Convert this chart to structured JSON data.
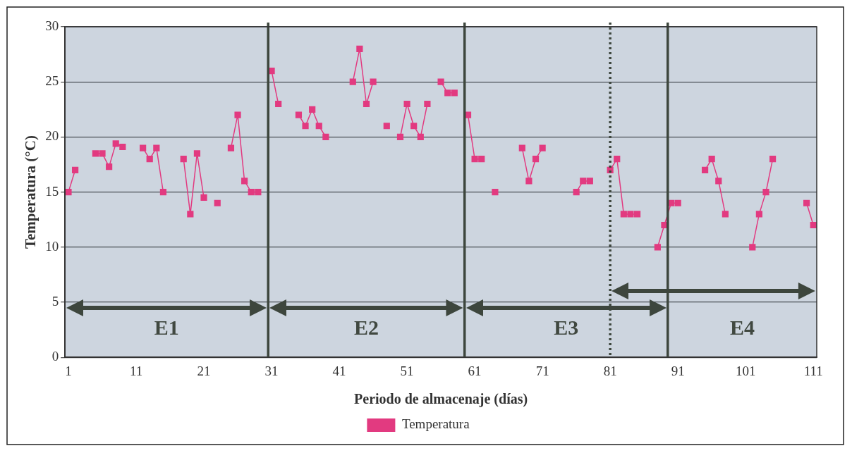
{
  "chart_data": {
    "type": "line",
    "xlabel": "Periodo de almacenaje (días)",
    "ylabel": "Temperatura (°C)",
    "x": [
      1,
      2,
      3,
      4,
      5,
      6,
      7,
      8,
      9,
      10,
      11,
      12,
      13,
      14,
      15,
      16,
      17,
      18,
      19,
      20,
      21,
      22,
      23,
      24,
      25,
      26,
      27,
      28,
      29,
      30,
      31,
      32,
      33,
      34,
      35,
      36,
      37,
      38,
      39,
      40,
      41,
      42,
      43,
      44,
      45,
      46,
      47,
      48,
      49,
      50,
      51,
      52,
      53,
      54,
      55,
      56,
      57,
      58,
      59,
      60,
      61,
      62,
      63,
      64,
      65,
      66,
      67,
      68,
      69,
      70,
      71,
      72,
      73,
      74,
      75,
      76,
      77,
      78,
      79,
      80,
      81,
      82,
      83,
      84,
      85,
      86,
      87,
      88,
      89,
      90,
      91,
      92,
      93,
      94,
      95,
      96,
      97,
      98,
      99,
      100,
      101,
      102,
      103,
      104,
      105,
      106,
      107,
      108,
      109,
      110,
      111
    ],
    "series": [
      {
        "name": "Temperatura",
        "color": "#e23a80",
        "values": [
          15,
          17,
          null,
          null,
          18.5,
          18.5,
          17.3,
          19.4,
          19.1,
          null,
          null,
          19,
          18,
          19,
          15,
          null,
          null,
          18,
          13,
          18.5,
          14.5,
          null,
          14,
          null,
          19,
          22,
          16,
          15,
          15,
          null,
          26,
          23,
          null,
          null,
          22,
          21,
          22.5,
          21,
          20,
          null,
          null,
          null,
          25,
          28,
          23,
          25,
          null,
          21,
          null,
          20,
          23,
          21,
          20,
          23,
          null,
          25,
          24,
          24,
          null,
          22,
          18,
          18,
          null,
          15,
          null,
          null,
          null,
          19,
          16,
          18,
          19,
          null,
          null,
          null,
          null,
          15,
          16,
          16,
          null,
          null,
          17,
          18,
          13,
          13,
          13,
          null,
          null,
          10,
          12,
          14,
          14,
          null,
          null,
          null,
          17,
          18,
          16,
          13,
          null,
          null,
          null,
          10,
          13,
          15,
          18,
          null,
          null,
          null,
          null,
          14,
          12
        ]
      }
    ],
    "xlim": [
      0.5,
      111.5
    ],
    "xticks": [
      1,
      11,
      21,
      31,
      41,
      51,
      61,
      71,
      81,
      91,
      101,
      111
    ],
    "ylim": [
      0,
      30
    ],
    "yticks": [
      0,
      5,
      10,
      15,
      20,
      25,
      30
    ],
    "grid": "y",
    "marker": "square",
    "line_style": "solid",
    "legend": "bottom",
    "ref_lines": [
      {
        "axis": "x",
        "value": 30.5,
        "color": "#3d463d",
        "line_style": "solid"
      },
      {
        "axis": "x",
        "value": 59.5,
        "color": "#3d463d",
        "line_style": "solid"
      },
      {
        "axis": "x",
        "value": 81,
        "color": "#3d463d",
        "line_style": "dotted"
      },
      {
        "axis": "x",
        "value": 89.5,
        "color": "#3d463d",
        "line_style": "solid"
      }
    ],
    "annotations": [
      "E1",
      "E2",
      "E3",
      "E4"
    ]
  }
}
